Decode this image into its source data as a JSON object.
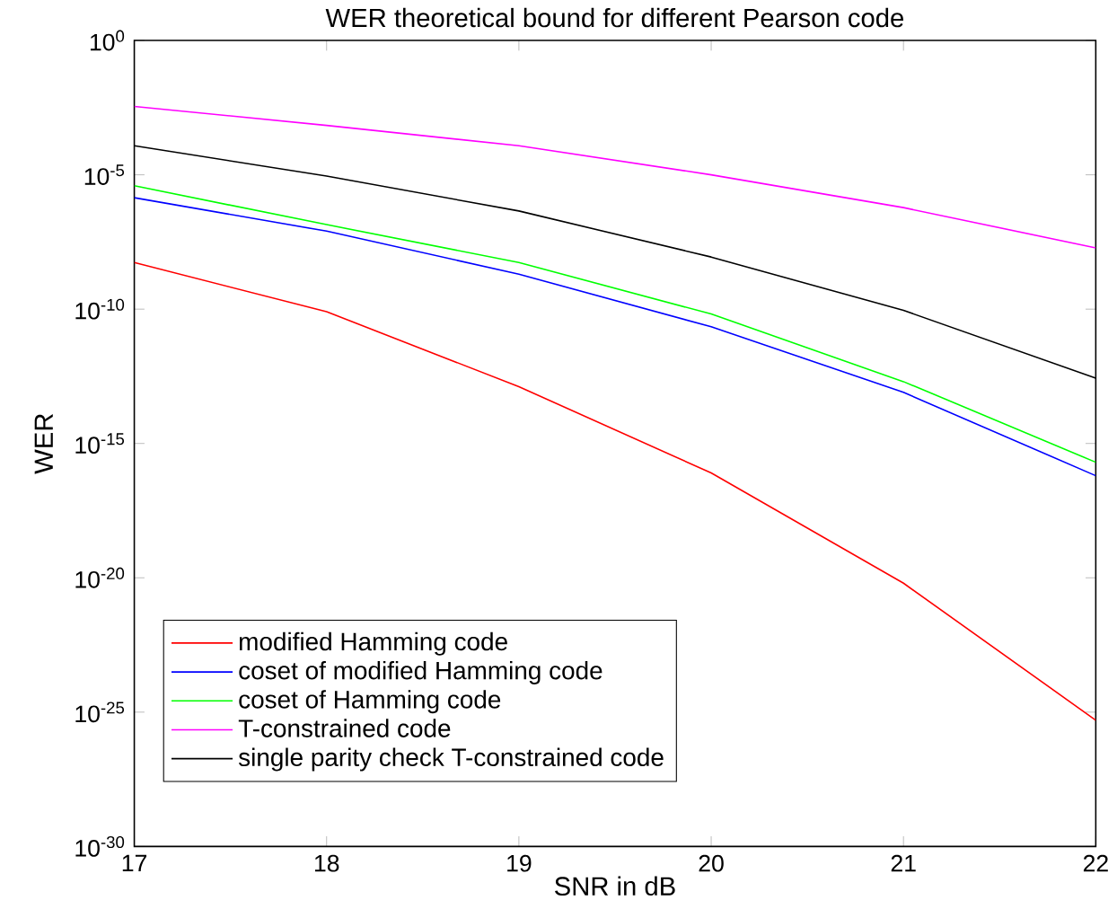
{
  "chart_data": {
    "type": "line",
    "title": "WER theoretical bound for different Pearson code",
    "xlabel": "SNR in dB",
    "ylabel": "WER",
    "log": "y",
    "x": [
      17,
      18,
      19,
      20,
      21,
      22
    ],
    "series": [
      {
        "name": "modified Hamming code",
        "color": "#ff0000",
        "values": [
          5.4e-09,
          8e-11,
          1.3e-13,
          8e-17,
          6.3e-21,
          5e-26
        ]
      },
      {
        "name": "coset of modified Hamming code",
        "color": "#0000ff",
        "values": [
          1.4e-06,
          8e-08,
          2e-09,
          2.2e-11,
          8e-14,
          6.3e-17
        ]
      },
      {
        "name": "coset of Hamming code",
        "color": "#00ff00",
        "values": [
          3.9e-06,
          1.4e-07,
          5.4e-09,
          6.6e-11,
          2e-13,
          2e-16
        ]
      },
      {
        "name": "T-constrained code",
        "color": "#ff00ff",
        "values": [
          0.0035,
          0.00069,
          0.00012,
          1e-05,
          6e-07,
          1.9e-08
        ]
      },
      {
        "name": "single parity check T-constrained code",
        "color": "#000000",
        "values": [
          0.00012,
          9e-06,
          4.5e-07,
          8.7e-09,
          9e-11,
          2.7e-13
        ]
      }
    ],
    "xlim": [
      17,
      22
    ],
    "ylim": [
      1e-30,
      1
    ],
    "xticks": [
      17,
      18,
      19,
      20,
      21,
      22
    ],
    "yticks": [
      {
        "value": 1e-30,
        "label": "10$^{-30}$"
      },
      {
        "value": 1e-25,
        "label": "10$^{-25}$"
      },
      {
        "value": 1e-20,
        "label": "10$^{-20}$"
      },
      {
        "value": 1e-15,
        "label": "10$^{-15}$"
      },
      {
        "value": 1e-10,
        "label": "10$^{-10}$"
      },
      {
        "value": 1e-05,
        "label": "10$^{-5}$"
      },
      {
        "value": 1,
        "label": "10$^{0}$"
      }
    ],
    "grid": false,
    "legend": "bottom left",
    "marker": "none",
    "line_style": "solid"
  }
}
